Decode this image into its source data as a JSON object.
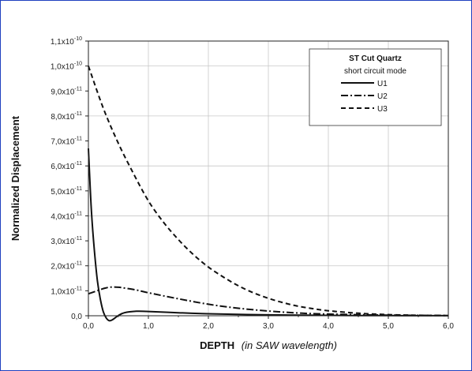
{
  "chart_data": {
    "type": "line",
    "xlabel_main": "DEPTH",
    "xlabel_italic": "(in SAW wavelength)",
    "ylabel": "Normalized Displacement",
    "xlim": [
      0,
      6
    ],
    "ylim": [
      0,
      1.1e-10
    ],
    "grid": true,
    "legend_placement": "top-right",
    "legend": {
      "title": "ST Cut Quartz",
      "subtitle": "short circuit mode"
    },
    "x_tick_labels": [
      "0,0",
      "1,0",
      "2,0",
      "3,0",
      "4,0",
      "5,0",
      "6,0"
    ],
    "y_tick_labels": [
      {
        "mantissa": "0,0",
        "exp": ""
      },
      {
        "mantissa": "1,0x10",
        "exp": "-11"
      },
      {
        "mantissa": "2,0x10",
        "exp": "-11"
      },
      {
        "mantissa": "3,0x10",
        "exp": "-11"
      },
      {
        "mantissa": "4,0x10",
        "exp": "-11"
      },
      {
        "mantissa": "5,0x10",
        "exp": "-11"
      },
      {
        "mantissa": "6,0x10",
        "exp": "-11"
      },
      {
        "mantissa": "7,0x10",
        "exp": "-11"
      },
      {
        "mantissa": "8,0x10",
        "exp": "-11"
      },
      {
        "mantissa": "9,0x10",
        "exp": "-11"
      },
      {
        "mantissa": "1,0x10",
        "exp": "-10"
      },
      {
        "mantissa": "1,1x10",
        "exp": "-10"
      }
    ],
    "series": [
      {
        "name": "U1",
        "dash": "solid",
        "x": [
          0,
          0.05,
          0.1,
          0.15,
          0.2,
          0.25,
          0.3,
          0.35,
          0.4,
          0.5,
          0.6,
          0.8,
          1.0,
          1.5,
          2.0,
          3.0,
          4.0,
          5.0,
          6.0
        ],
        "y": [
          6.7e-11,
          4.2e-11,
          2.6e-11,
          1.4e-11,
          6.5e-12,
          1.5e-12,
          -1e-12,
          -2e-12,
          -1.6e-12,
          1e-13,
          1.2e-12,
          1.8e-12,
          1.7e-12,
          1.2e-12,
          8e-13,
          3.5e-13,
          1.5e-13,
          5e-14,
          2e-14
        ]
      },
      {
        "name": "U2",
        "dash": "dashdot",
        "x": [
          0,
          0.1,
          0.2,
          0.3,
          0.4,
          0.5,
          0.6,
          0.8,
          1.0,
          1.5,
          2.0,
          2.5,
          3.0,
          3.5,
          4.0,
          5.0,
          6.0
        ],
        "y": [
          8.8e-12,
          9.6e-12,
          1.05e-11,
          1.12e-11,
          1.15e-11,
          1.14e-11,
          1.11e-11,
          1.03e-11,
          9.2e-12,
          6.8e-12,
          4.6e-12,
          3e-12,
          1.9e-12,
          1.1e-12,
          6.5e-13,
          2.5e-13,
          8e-14
        ]
      },
      {
        "name": "U3",
        "dash": "dashed",
        "x": [
          0,
          0.25,
          0.5,
          0.75,
          1.0,
          1.25,
          1.5,
          1.75,
          2.0,
          2.25,
          2.5,
          2.75,
          3.0,
          3.25,
          3.5,
          3.75,
          4.0,
          4.5,
          5.0,
          5.5,
          6.0
        ],
        "y": [
          1e-10,
          8.3e-11,
          6.9e-11,
          5.7e-11,
          4.6e-11,
          3.75e-11,
          3.05e-11,
          2.45e-11,
          1.95e-11,
          1.55e-11,
          1.2e-11,
          9.2e-12,
          7e-12,
          5.2e-12,
          3.8e-12,
          2.8e-12,
          2e-12,
          1e-12,
          4.5e-13,
          1.8e-13,
          6e-14
        ]
      }
    ]
  }
}
